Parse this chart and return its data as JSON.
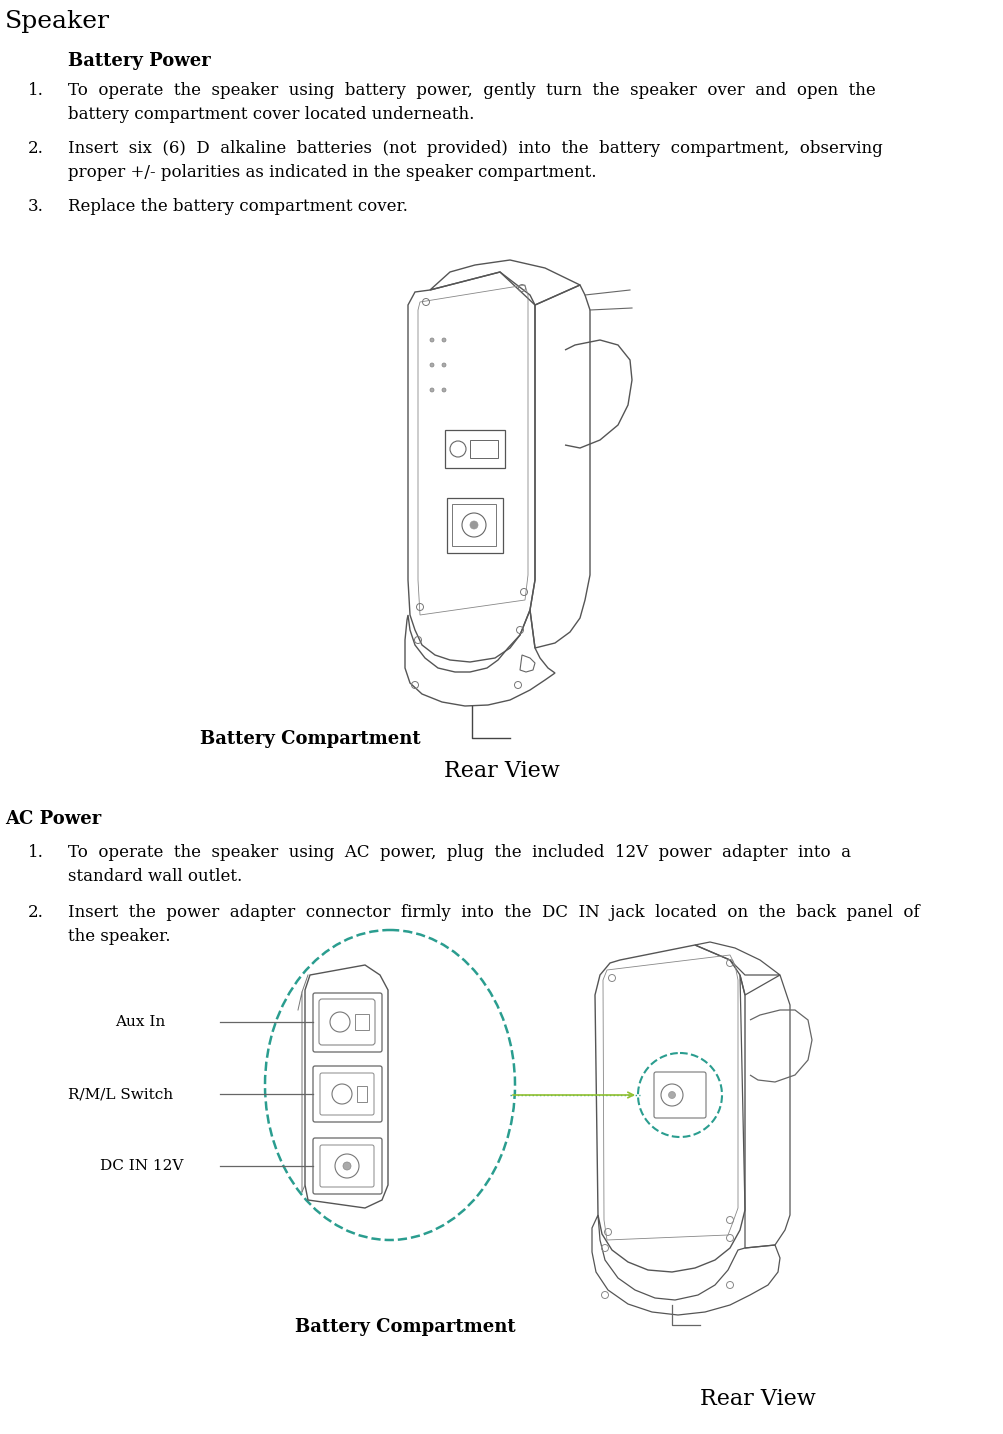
{
  "title": "Speaker",
  "battery_power_header": "Battery Power",
  "ac_power_header": "AC Power",
  "rear_view_label": "Rear View",
  "battery_compartment_label": "Battery Compartment",
  "aux_in_label": "Aux In",
  "rml_switch_label": "R/M/L Switch",
  "dc_in_label": "DC IN 12V",
  "bg_color": "#ffffff",
  "text_color": "#000000",
  "line_color": "#333333",
  "title_fontsize": 18,
  "header_fontsize": 13,
  "body_fontsize": 12,
  "diagram_label_fontsize": 11,
  "rear_view_fontsize": 16,
  "bat_comp_fontsize": 13
}
